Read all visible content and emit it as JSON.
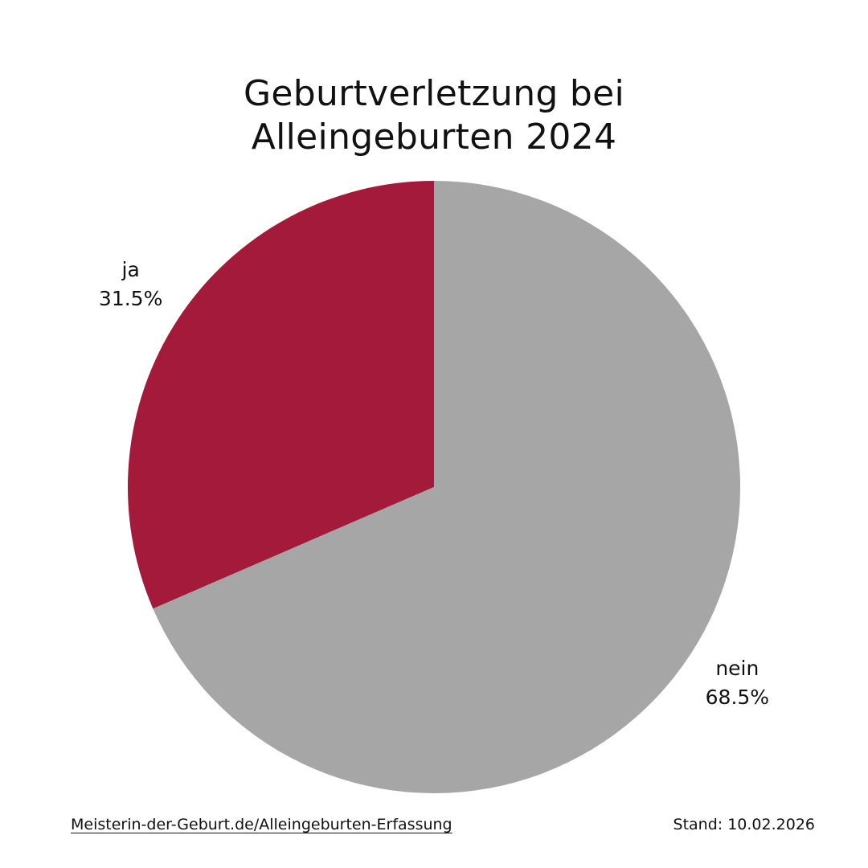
{
  "chart_data": {
    "type": "pie",
    "title_lines": [
      "Geburtverletzung bei",
      "Alleingeburten 2024"
    ],
    "categories": [
      "ja",
      "nein"
    ],
    "values": [
      31.5,
      68.5
    ],
    "value_labels": [
      "31.5%",
      "68.5%"
    ],
    "unit": "%",
    "colors": [
      "#a31a3a",
      "#a6a6a6"
    ]
  },
  "footer": {
    "source_link": "Meisterin-der-Geburt.de/Alleingeburten-Erfassung",
    "date_text": "Stand: 10.02.2026"
  }
}
